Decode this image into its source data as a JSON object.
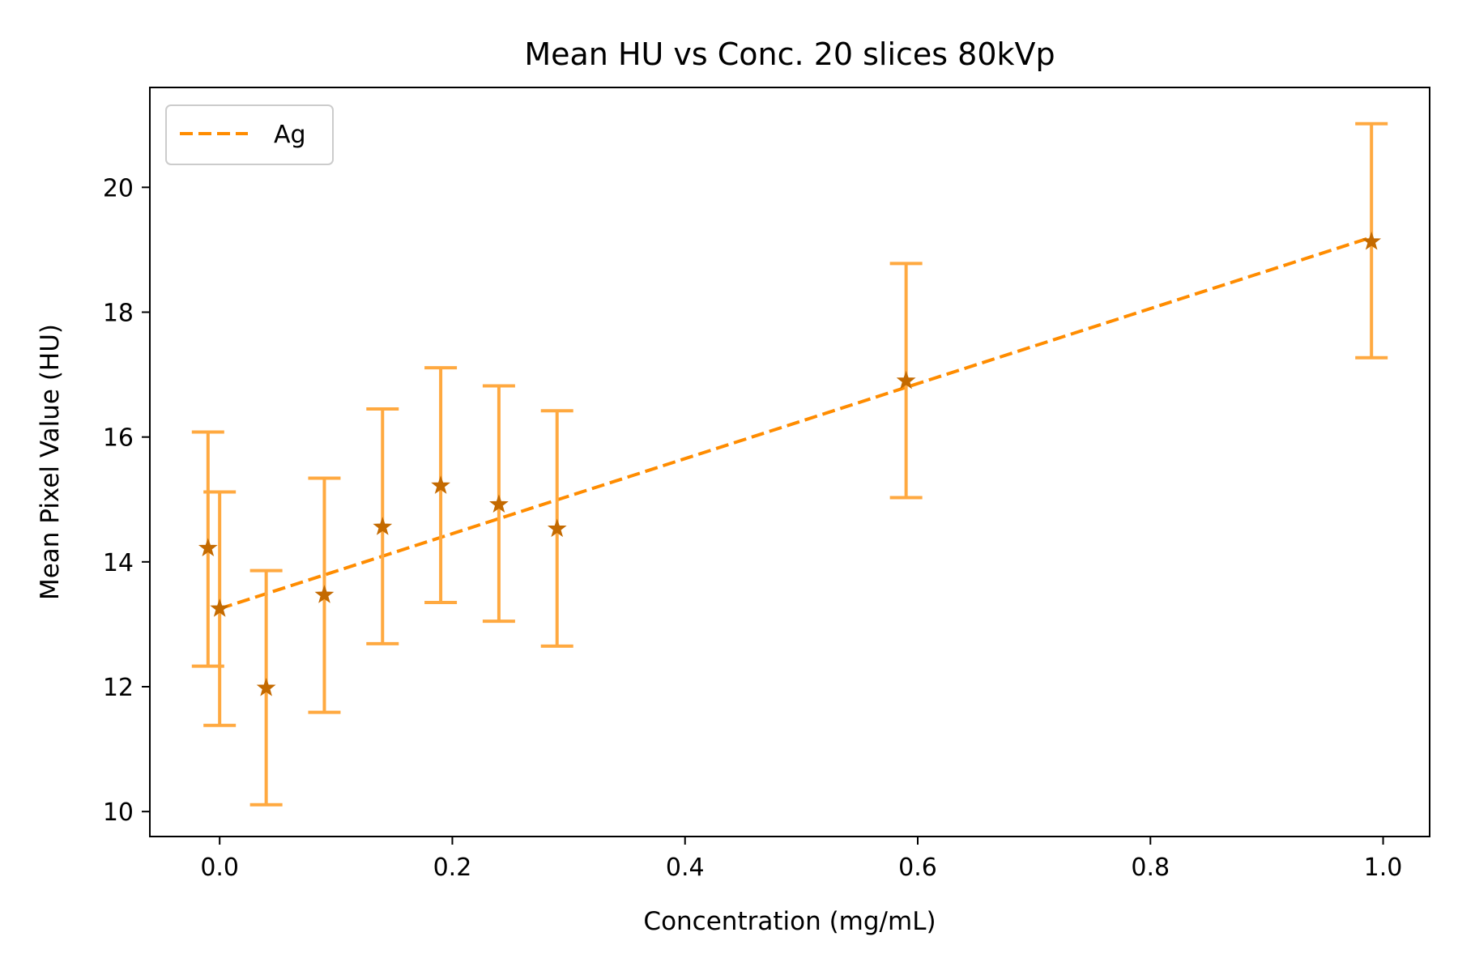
{
  "chart_data": {
    "type": "scatter",
    "title": "Mean HU vs Conc. 20 slices 80kVp",
    "xlabel": "Concentration (mg/mL)",
    "ylabel": "Mean Pixel Value (HU)",
    "xlim": [
      -0.06,
      1.04
    ],
    "ylim": [
      9.6,
      21.6
    ],
    "x_ticks": [
      0.0,
      0.2,
      0.4,
      0.6,
      0.8,
      1.0
    ],
    "x_tick_labels": [
      "0.0",
      "0.2",
      "0.4",
      "0.6",
      "0.8",
      "1.0"
    ],
    "y_ticks": [
      10,
      12,
      14,
      16,
      18,
      20
    ],
    "y_tick_labels": [
      "10",
      "12",
      "14",
      "16",
      "18",
      "20"
    ],
    "grid": false,
    "legend_position": "upper-left",
    "series": [
      {
        "name": "Ag",
        "marker": "star",
        "marker_color": "#c46a00",
        "errorbar_color": "#ffa940",
        "points": [
          {
            "x": -0.01,
            "y": 14.22,
            "err_low": 12.33,
            "err_high": 16.08
          },
          {
            "x": 0.0,
            "y": 13.25,
            "err_low": 11.38,
            "err_high": 15.12
          },
          {
            "x": 0.04,
            "y": 11.98,
            "err_low": 10.11,
            "err_high": 13.86
          },
          {
            "x": 0.09,
            "y": 13.47,
            "err_low": 11.59,
            "err_high": 15.34
          },
          {
            "x": 0.14,
            "y": 14.56,
            "err_low": 12.69,
            "err_high": 16.45
          },
          {
            "x": 0.19,
            "y": 15.22,
            "err_low": 13.35,
            "err_high": 17.11
          },
          {
            "x": 0.24,
            "y": 14.92,
            "err_low": 13.05,
            "err_high": 16.82
          },
          {
            "x": 0.29,
            "y": 14.53,
            "err_low": 12.65,
            "err_high": 16.42
          },
          {
            "x": 0.59,
            "y": 16.9,
            "err_low": 15.03,
            "err_high": 18.78
          },
          {
            "x": 0.99,
            "y": 19.13,
            "err_low": 17.27,
            "err_high": 21.02
          }
        ]
      }
    ],
    "fit_line": {
      "name": "Ag",
      "style": "dashed",
      "color": "#ff8c00",
      "x": [
        0.0,
        0.99
      ],
      "y": [
        13.25,
        19.2
      ]
    }
  }
}
